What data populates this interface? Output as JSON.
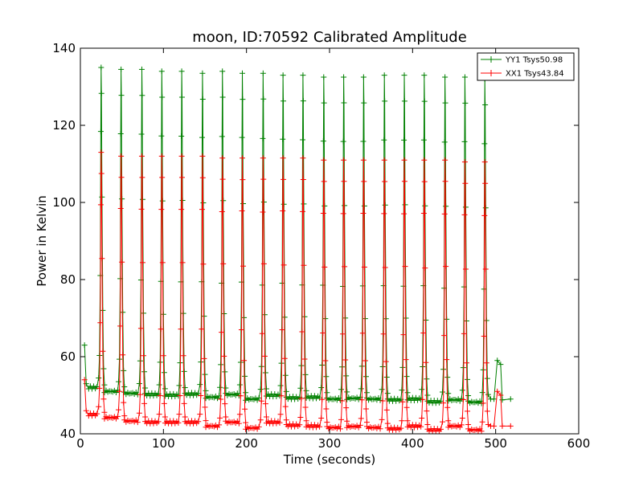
{
  "chart_data": {
    "type": "line",
    "title": "moon, ID:70592 Calibrated Amplitude",
    "xlabel": "Time (seconds)",
    "ylabel": "Power in Kelvin",
    "xlim": [
      0,
      600
    ],
    "ylim": [
      40,
      140
    ],
    "xticks": [
      "0",
      "100",
      "200",
      "300",
      "400",
      "500",
      "600"
    ],
    "yticks": [
      "40",
      "60",
      "80",
      "100",
      "120",
      "140"
    ],
    "grid": false,
    "legend_position": "top-right",
    "peak_times": [
      25,
      49,
      74,
      98,
      122,
      147,
      171,
      195,
      220,
      244,
      268,
      293,
      317,
      341,
      366,
      390,
      414,
      439,
      463,
      487
    ],
    "series": [
      {
        "name": "YY1 Tsys50.98",
        "color": "#008000",
        "start": [
          5,
          63
        ],
        "baseline": [
          52,
          51,
          50.5,
          50.2,
          50,
          50.3,
          49.5,
          50.2,
          49,
          50,
          49.3,
          49.5,
          49,
          49.2,
          49,
          48.8,
          49,
          48.3,
          48.8,
          48.2,
          48.5
        ],
        "peaks": [
          135,
          134.5,
          134.5,
          134,
          134,
          133.5,
          134,
          133.5,
          133.5,
          133,
          133,
          132.5,
          132.5,
          132.5,
          133,
          133,
          133,
          132.5,
          132.5,
          132
        ],
        "tail": [
          [
            494,
            49
          ],
          [
            498,
            49
          ],
          [
            502,
            59
          ],
          [
            506,
            58
          ],
          [
            508,
            48.8
          ],
          [
            518,
            49
          ]
        ]
      },
      {
        "name": "XX1 Tsys43.84",
        "color": "#ff0000",
        "start": [
          5,
          54
        ],
        "baseline": [
          45,
          44.2,
          43.3,
          43,
          43,
          43,
          42,
          43,
          41.5,
          43,
          42.2,
          42,
          41.6,
          41.9,
          41.6,
          41.3,
          42,
          41,
          42,
          41,
          41
        ],
        "peaks": [
          113,
          112,
          112,
          112,
          112,
          112,
          111.5,
          111.5,
          111.5,
          111.5,
          111.5,
          111,
          111,
          111,
          111,
          111,
          111,
          111,
          110.5,
          110.5
        ],
        "tail": [
          [
            494,
            42
          ],
          [
            498,
            42
          ],
          [
            502,
            51
          ],
          [
            506,
            50
          ],
          [
            508,
            42
          ],
          [
            518,
            42
          ]
        ]
      }
    ]
  }
}
